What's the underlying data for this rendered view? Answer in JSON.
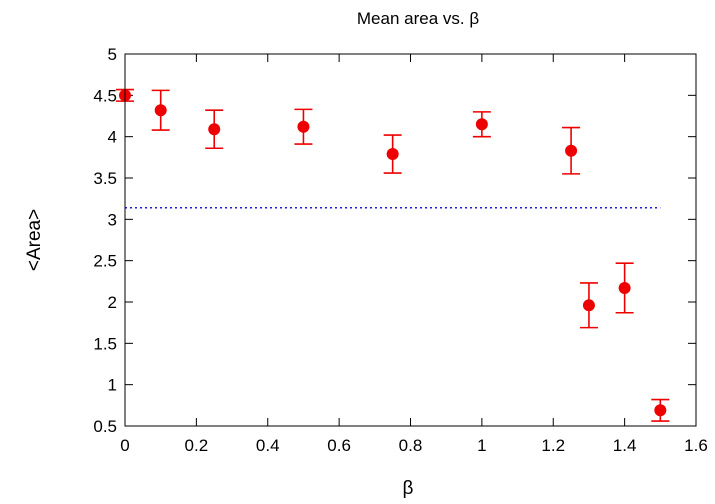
{
  "chart_data": {
    "type": "scatter",
    "title": "Mean area vs. β",
    "xlabel": "β",
    "ylabel": "<Area>",
    "xlim": [
      0,
      1.6
    ],
    "ylim": [
      0.5,
      5
    ],
    "xticks": [
      "0",
      "0.2",
      "0.4",
      "0.6",
      "0.8",
      "1",
      "1.2",
      "1.4",
      "1.6"
    ],
    "yticks": [
      "0.5",
      "1",
      "1.5",
      "2",
      "2.5",
      "3",
      "3.5",
      "4",
      "4.5",
      "5"
    ],
    "grid": false,
    "series": [
      {
        "color": "#ee0000",
        "points": [
          {
            "x": 0.0,
            "y": 4.5,
            "err": 0.07
          },
          {
            "x": 0.1,
            "y": 4.32,
            "err": 0.24
          },
          {
            "x": 0.25,
            "y": 4.09,
            "err": 0.23
          },
          {
            "x": 0.5,
            "y": 4.12,
            "err": 0.21
          },
          {
            "x": 0.75,
            "y": 3.79,
            "err": 0.23
          },
          {
            "x": 1.0,
            "y": 4.15,
            "err": 0.15
          },
          {
            "x": 1.25,
            "y": 3.83,
            "err": 0.28
          },
          {
            "x": 1.3,
            "y": 1.96,
            "err": 0.27
          },
          {
            "x": 1.4,
            "y": 2.17,
            "err": 0.3
          },
          {
            "x": 1.5,
            "y": 0.69,
            "err": 0.13
          }
        ]
      }
    ],
    "reference_line": {
      "y": 3.14,
      "x_from": 0.0,
      "x_to": 1.5,
      "style": "dotted",
      "color": "#1a1ad8"
    }
  }
}
